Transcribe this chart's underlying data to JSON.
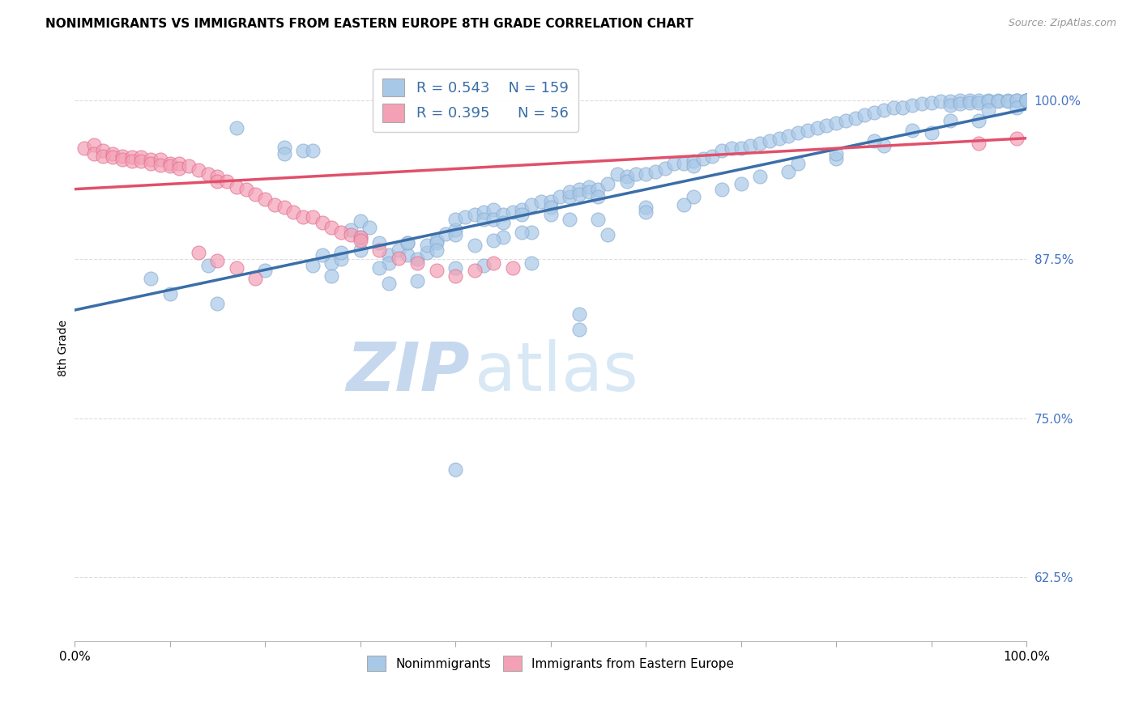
{
  "title": "NONIMMIGRANTS VS IMMIGRANTS FROM EASTERN EUROPE 8TH GRADE CORRELATION CHART",
  "source_text": "Source: ZipAtlas.com",
  "ylabel": "8th Grade",
  "y_tick_labels": [
    "62.5%",
    "75.0%",
    "87.5%",
    "100.0%"
  ],
  "y_tick_values": [
    0.625,
    0.75,
    0.875,
    1.0
  ],
  "xlim": [
    0.0,
    1.0
  ],
  "ylim": [
    0.575,
    1.035
  ],
  "blue_color": "#A8C8E8",
  "pink_color": "#F4A0B5",
  "blue_edge_color": "#8AACD0",
  "pink_edge_color": "#E07090",
  "blue_line_color": "#3A6EA8",
  "pink_line_color": "#E0506A",
  "blue_R": 0.543,
  "blue_N": 159,
  "pink_R": 0.395,
  "pink_N": 56,
  "blue_label": "Nonimmigrants",
  "pink_label": "Immigrants from Eastern Europe",
  "watermark_zip": "ZIP",
  "watermark_atlas": "atlas",
  "blue_trendline_x": [
    0.0,
    1.0
  ],
  "blue_trendline_y": [
    0.835,
    0.993
  ],
  "pink_trendline_x": [
    0.0,
    1.0
  ],
  "pink_trendline_y": [
    0.93,
    0.97
  ],
  "legend_fontsize": 13,
  "title_fontsize": 11,
  "ylabel_fontsize": 10,
  "tick_fontsize": 11,
  "watermark_color_zip": "#C5D8EE",
  "watermark_color_atlas": "#D8E8F5",
  "watermark_fontsize": 60,
  "blue_scatter_x": [
    0.08,
    0.17,
    0.22,
    0.22,
    0.24,
    0.25,
    0.27,
    0.27,
    0.28,
    0.29,
    0.3,
    0.3,
    0.31,
    0.32,
    0.33,
    0.33,
    0.34,
    0.35,
    0.35,
    0.36,
    0.37,
    0.37,
    0.38,
    0.38,
    0.39,
    0.4,
    0.4,
    0.41,
    0.42,
    0.43,
    0.43,
    0.44,
    0.44,
    0.45,
    0.45,
    0.46,
    0.47,
    0.47,
    0.48,
    0.49,
    0.5,
    0.5,
    0.51,
    0.52,
    0.52,
    0.53,
    0.53,
    0.54,
    0.54,
    0.55,
    0.55,
    0.56,
    0.57,
    0.58,
    0.58,
    0.59,
    0.6,
    0.61,
    0.62,
    0.63,
    0.64,
    0.65,
    0.65,
    0.66,
    0.67,
    0.68,
    0.69,
    0.7,
    0.71,
    0.72,
    0.73,
    0.74,
    0.75,
    0.76,
    0.77,
    0.78,
    0.79,
    0.8,
    0.81,
    0.82,
    0.83,
    0.84,
    0.85,
    0.86,
    0.87,
    0.88,
    0.89,
    0.9,
    0.91,
    0.92,
    0.92,
    0.93,
    0.93,
    0.94,
    0.94,
    0.95,
    0.95,
    0.96,
    0.96,
    0.97,
    0.97,
    0.98,
    0.98,
    0.99,
    0.99,
    1.0,
    1.0,
    1.0,
    1.0,
    1.0,
    0.1,
    0.14,
    0.2,
    0.25,
    0.3,
    0.35,
    0.4,
    0.45,
    0.5,
    0.55,
    0.6,
    0.65,
    0.7,
    0.75,
    0.8,
    0.85,
    0.9,
    0.95,
    0.99,
    0.26,
    0.28,
    0.32,
    0.36,
    0.4,
    0.44,
    0.48,
    0.52,
    0.56,
    0.6,
    0.64,
    0.68,
    0.72,
    0.76,
    0.8,
    0.84,
    0.88,
    0.92,
    0.96,
    1.0,
    0.15,
    0.33,
    0.38,
    0.43,
    0.48,
    0.53,
    0.42,
    0.47,
    0.53,
    0.4
  ],
  "blue_scatter_y": [
    0.86,
    0.978,
    0.963,
    0.958,
    0.96,
    0.96,
    0.872,
    0.862,
    0.875,
    0.898,
    0.892,
    0.905,
    0.9,
    0.888,
    0.878,
    0.872,
    0.882,
    0.888,
    0.878,
    0.875,
    0.88,
    0.886,
    0.89,
    0.888,
    0.895,
    0.898,
    0.906,
    0.908,
    0.91,
    0.912,
    0.906,
    0.914,
    0.906,
    0.91,
    0.904,
    0.912,
    0.914,
    0.91,
    0.918,
    0.92,
    0.92,
    0.916,
    0.924,
    0.924,
    0.928,
    0.93,
    0.926,
    0.932,
    0.928,
    0.93,
    0.924,
    0.934,
    0.942,
    0.94,
    0.936,
    0.942,
    0.942,
    0.944,
    0.946,
    0.95,
    0.95,
    0.952,
    0.948,
    0.954,
    0.956,
    0.96,
    0.962,
    0.962,
    0.964,
    0.966,
    0.968,
    0.97,
    0.972,
    0.974,
    0.976,
    0.978,
    0.98,
    0.982,
    0.984,
    0.986,
    0.988,
    0.99,
    0.992,
    0.994,
    0.994,
    0.996,
    0.997,
    0.998,
    0.999,
    0.999,
    0.996,
    1.0,
    0.997,
    1.0,
    0.998,
    1.0,
    0.998,
    1.0,
    0.999,
    1.0,
    0.999,
    1.0,
    0.999,
    1.0,
    1.0,
    1.0,
    1.0,
    1.0,
    1.0,
    1.0,
    0.848,
    0.87,
    0.866,
    0.87,
    0.882,
    0.888,
    0.894,
    0.892,
    0.91,
    0.906,
    0.916,
    0.924,
    0.934,
    0.944,
    0.954,
    0.964,
    0.974,
    0.984,
    0.994,
    0.878,
    0.88,
    0.868,
    0.858,
    0.868,
    0.89,
    0.896,
    0.906,
    0.894,
    0.912,
    0.918,
    0.93,
    0.94,
    0.95,
    0.958,
    0.968,
    0.976,
    0.984,
    0.992,
    1.0,
    0.84,
    0.856,
    0.882,
    0.87,
    0.872,
    0.82,
    0.886,
    0.896,
    0.832,
    0.71
  ],
  "pink_scatter_x": [
    0.01,
    0.02,
    0.02,
    0.03,
    0.03,
    0.04,
    0.04,
    0.05,
    0.05,
    0.06,
    0.06,
    0.07,
    0.07,
    0.08,
    0.08,
    0.09,
    0.09,
    0.1,
    0.1,
    0.11,
    0.11,
    0.12,
    0.13,
    0.14,
    0.15,
    0.15,
    0.16,
    0.17,
    0.18,
    0.19,
    0.2,
    0.21,
    0.22,
    0.23,
    0.24,
    0.25,
    0.26,
    0.27,
    0.28,
    0.29,
    0.3,
    0.3,
    0.32,
    0.34,
    0.36,
    0.38,
    0.4,
    0.42,
    0.44,
    0.46,
    0.95,
    0.99,
    0.13,
    0.15,
    0.17,
    0.19
  ],
  "pink_scatter_y": [
    0.962,
    0.965,
    0.958,
    0.96,
    0.956,
    0.958,
    0.955,
    0.956,
    0.953,
    0.955,
    0.952,
    0.955,
    0.952,
    0.953,
    0.95,
    0.953,
    0.949,
    0.95,
    0.948,
    0.95,
    0.946,
    0.948,
    0.945,
    0.942,
    0.94,
    0.936,
    0.936,
    0.932,
    0.93,
    0.926,
    0.922,
    0.918,
    0.916,
    0.912,
    0.908,
    0.908,
    0.904,
    0.9,
    0.896,
    0.894,
    0.892,
    0.89,
    0.882,
    0.876,
    0.872,
    0.866,
    0.862,
    0.866,
    0.872,
    0.868,
    0.966,
    0.97,
    0.88,
    0.874,
    0.868,
    0.86
  ]
}
